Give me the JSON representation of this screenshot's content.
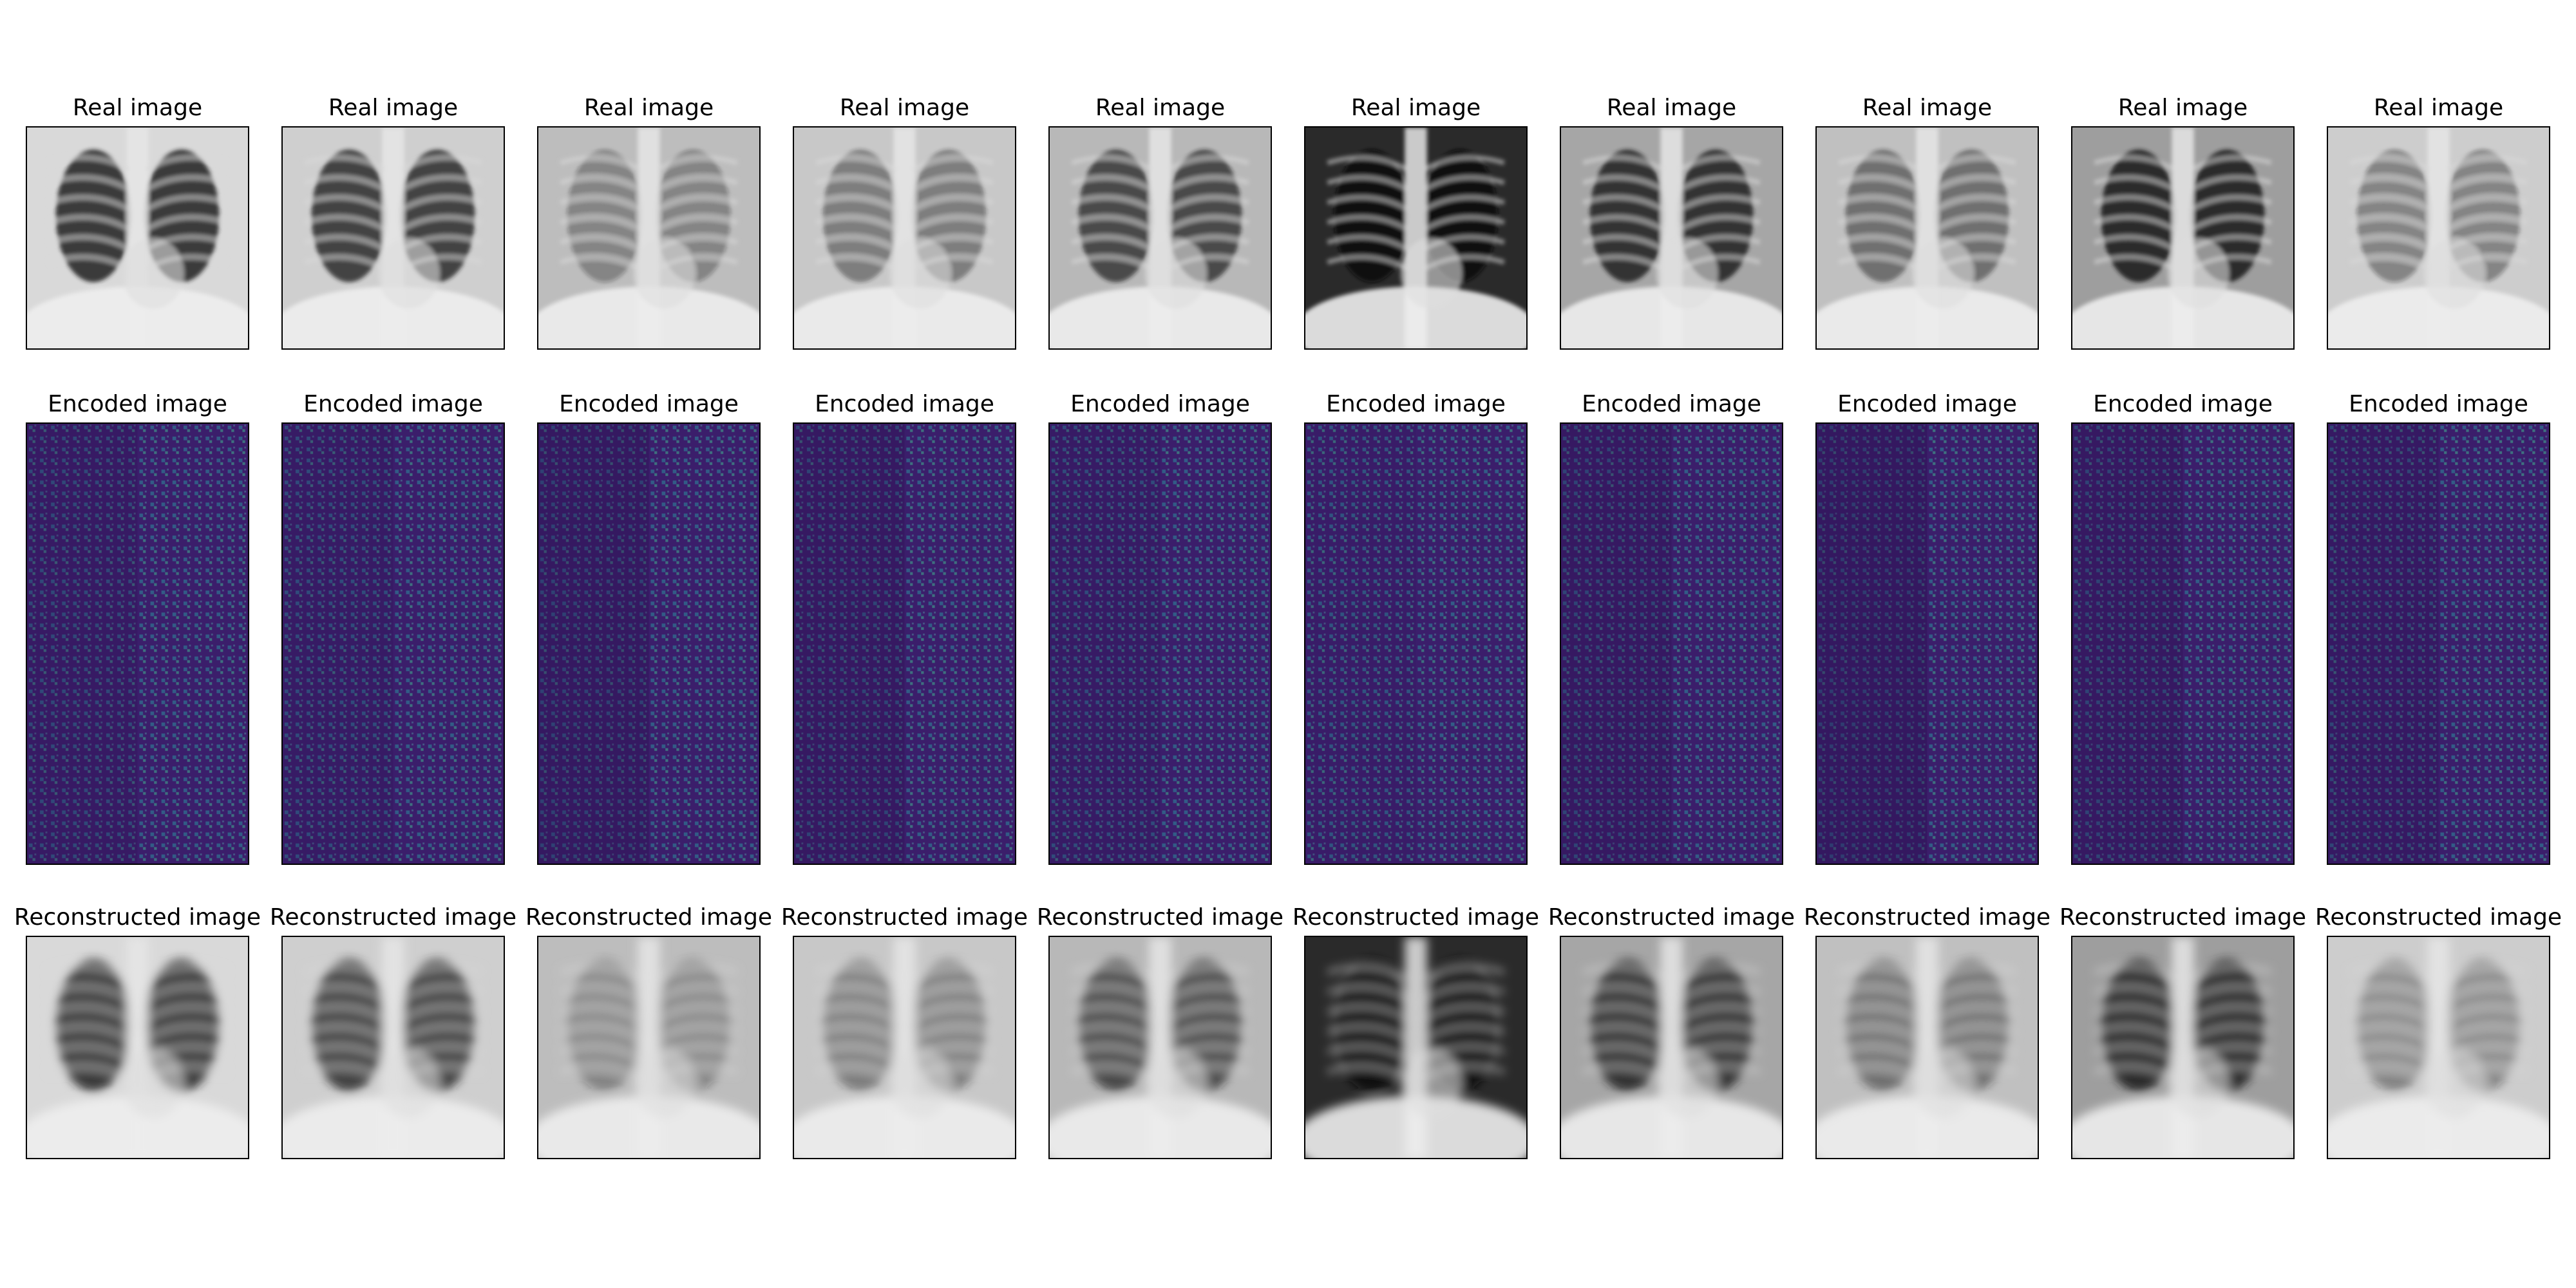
{
  "rows": [
    {
      "title": "Real image",
      "panels": [
        {
          "index": 1
        },
        {
          "index": 2
        },
        {
          "index": 3
        },
        {
          "index": 4
        },
        {
          "index": 5
        },
        {
          "index": 6
        },
        {
          "index": 7
        },
        {
          "index": 8
        },
        {
          "index": 9
        },
        {
          "index": 10
        }
      ]
    },
    {
      "title": "Encoded image",
      "panels": [
        {
          "index": 1
        },
        {
          "index": 2
        },
        {
          "index": 3
        },
        {
          "index": 4
        },
        {
          "index": 5
        },
        {
          "index": 6
        },
        {
          "index": 7
        },
        {
          "index": 8
        },
        {
          "index": 9
        },
        {
          "index": 10
        }
      ]
    },
    {
      "title": "Reconstructed image",
      "panels": [
        {
          "index": 1
        },
        {
          "index": 2
        },
        {
          "index": 3
        },
        {
          "index": 4
        },
        {
          "index": 5
        },
        {
          "index": 6
        },
        {
          "index": 7
        },
        {
          "index": 8
        },
        {
          "index": 9
        },
        {
          "index": 10
        }
      ]
    }
  ],
  "colors": {
    "background": "#ffffff",
    "xray_dark": "#1e1e1e",
    "xray_mid": "#8a8a8a",
    "xray_light": "#e6e6e6",
    "encoded_base": "#3b1e6b",
    "encoded_dot_a": "#2f6f8f",
    "encoded_dot_b": "#3fa68c",
    "frame": "#000000"
  }
}
